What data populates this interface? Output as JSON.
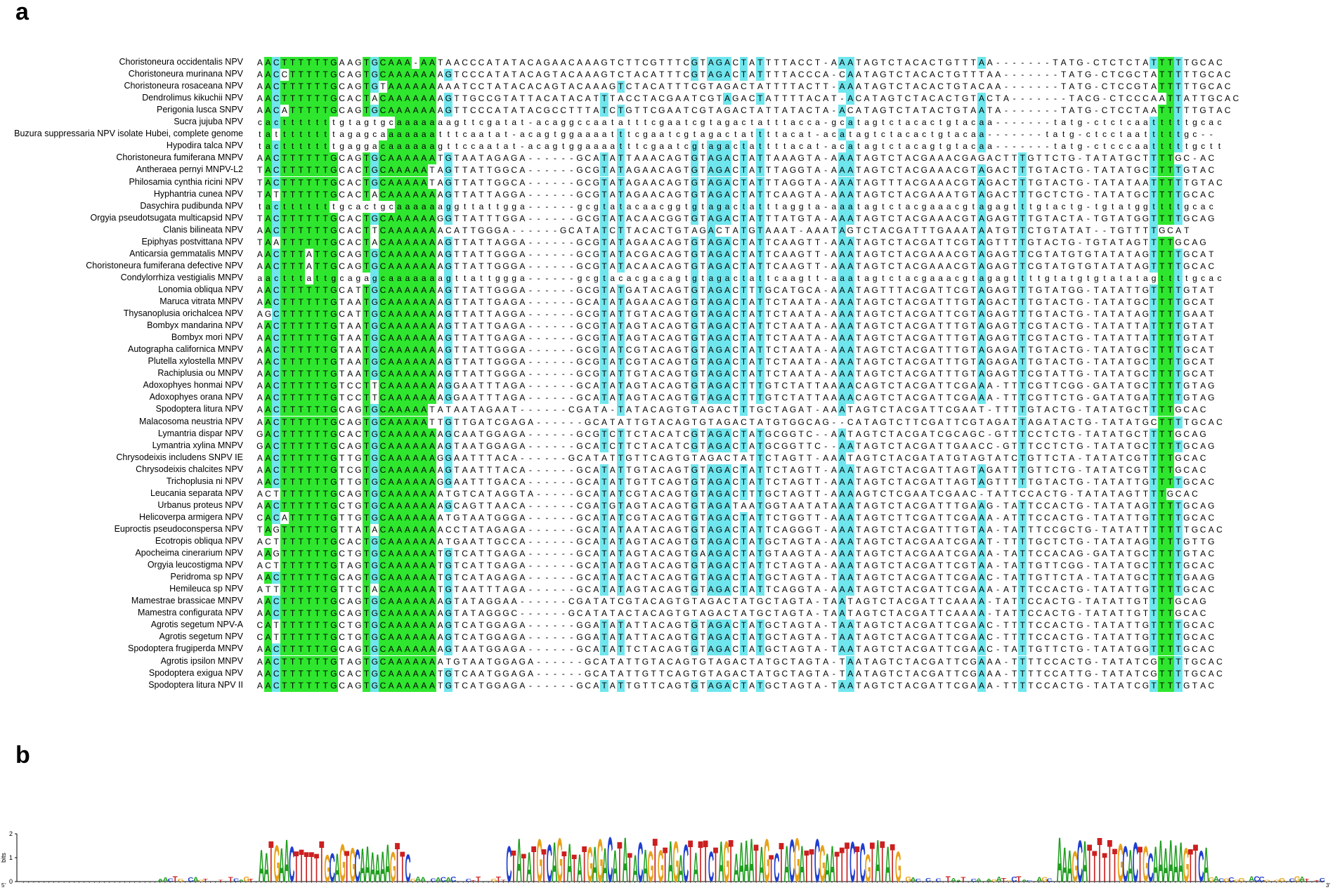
{
  "panels": {
    "a": "a",
    "b": "b"
  },
  "alignment": {
    "highlight_colors": {
      "conserved": "#2ee62e",
      "partial": "#6fe6ee"
    },
    "rows": [
      {
        "name": "Choristoneura occidentalis NPV",
        "seq": "AACTTTTTTGAAGTGCAAA-AATAACCCATATACAGAACAAAGTCTTCGTTTCGTAGACTATTTTACCT-AAATAGTCTACACTGTTTAA-------TATG-CTCTCTATTTTTGCAC"
      },
      {
        "name": "Choristoneura murinana NPV",
        "seq": "AACCTTTTTGCAGTGCAAAAAAAGTCCCATATACAGTACAAAGTCTACATTTCGTAGACTATTTTACCCA-CAATAGTCTACACTGTTTAA-------TATG-CTCGCTATTTTTGCAC"
      },
      {
        "name": "Choristoneura rosaceana NPV",
        "seq": "AACTTTTTTGCAGTGTAAAAAAAAATCCTATACACAGTACAAAGTCTACATTTCGTAGACTATTTTACTT-AAATAGTCTACACTGTACAA-------TATG-CTCCGTATTTTTGCAC"
      },
      {
        "name": "Dendrolimus kikuchii NPV",
        "seq": "AACTTTTTTGCACTACAAAAAAAGTTGCCGTATTACATACATTTACCTACGAATCGTAGACTATTTTACAT-ACATAGTCTACACTGTACTA-------TACG-CTCCCAATTATTGCAC"
      },
      {
        "name": "Perigonia lusca SNPV",
        "seq": "AACATTTTTGCAGTGCAAAAAAAGTTCCCATATACGCCTTTATCTGTTCGAATCGTAGACTATTATACTA-ACATAGTCTATACTGTAATA-------TATG-CTCCTAATTTTTGTAC"
      },
      {
        "name": "Sucra jujuba NPV",
        "seq": "cactttttttgtagtgcaaaaaaagttcgatat-acaggccaatatttcgaatcgtagactatttacca-gcatagtctacactgtacaa-------tatg-ctctcaatttttgcac"
      },
      {
        "name": "Buzura suppressaria NPV isolate Hubei, complete genome",
        "seq": "tattttttttagagcaaaaaaatttcaatat-acagtggaaaatttcgaatcgtagactattttacat-acatagtctacactgtacaa-------tatg-ctcctaatttttgc--"
      },
      {
        "name": "Hypodira talca NPV",
        "seq": "tactttttttgaggacaaaaaagttccaatat-acagtggaaaatttcgaatcgtagactattttacat-acatagtctacagtgtacaa-------tatg-ctcccaatttttgctt"
      },
      {
        "name": "Choristoneura fumiferana MNPV",
        "seq": "AACTTTTTTGCAGTGCAAAAAATGTAATAGAGA------GCATATTAAACAGTGTAGACTATTAAAGTA-AAATAGTCTACGAAACGAGACTTTGTTCTG-TATATGCTTTTGC-AC"
      },
      {
        "name": "Antheraea pernyi MNPV-L2",
        "seq": "TACTTTTTTGCACTGCAAAAATAGTTATTGGCA------GCGTATAGAACAGTGTAGACTATTTAGGTA-AAATAGTCTACGAAACGTAGACTTTGTACTG-TATATGCTTTTGTAC"
      },
      {
        "name": "Philosamia cynthia ricini NPV",
        "seq": "TACTTTTTTGCACTGCAAAAATAGTTATTGGCA------GCGTATAGAACAGTGTAGACTATTTAGGTA-AAATAGTTTACGAAACGTAGACTTTGTACTG-TATATAATTTTTGTAC"
      },
      {
        "name": "Hyphantria cunea NPV",
        "seq": "TATTTTTTTGCACTACAAAAAAAGTTATTAGGA------GCGTATAGAACAGTGTAGACTATTCAAGTA-AAATAGTCTACGAAATGTAGACTTTGCTCTG-TATATGCTTTTGCAC"
      },
      {
        "name": "Dasychira pudibunda NPV",
        "seq": "tactttttttgcactgcaaaaaaggttattgga------gcgtatacaacggtgtagactatttaggta-aaatagtctacgaaacgtagagtttgtactg-tgtatggttttgcac"
      },
      {
        "name": "Orgyia pseudotsugata multicapsid NPV",
        "seq": "TACTTTTTTGCACTGCAAAAAAGGTTATTTGGA------GCGTATACAACGGTGTAGACTATTTATGTA-AAATAGTCTACGAAACGTAGAGTTTGTACTA-TGTATGGTTTTGCAG"
      },
      {
        "name": "Clanis bilineata NPV",
        "seq": "AACTTTTTTGCACTTCAAAAAAACATTGGGA------GCATATCTTACACTGTAGACTATGTAAAT-AAATAGTCTACGATTTGAAATAATGTTCTGTATAT--TGTTTTGCAT"
      },
      {
        "name": "Epiphyas postvittana NPV",
        "seq": "TAATTTTTTGCACTACAAAAAAAGTTATTAGGA------GCGTATAGAACAGTGTAGACTATTCAAGTT-AAATAGTCTACGATTCGTAGTTTTGTACTG-TGTATAGTTTTGCAG"
      },
      {
        "name": "Anticarsia gemmatalis MNPV",
        "seq": "AACTTTATTGCAGTGCAAAAAAAGTTATTGGGA------GCGTATACGACAGTGTAGACTATTCAAGTT-AAATAGTCTACGAAACGTAGAGTTCGTATGTGTATATAGTTTTGCAT"
      },
      {
        "name": "Choristoneura fumiferana defective NPV",
        "seq": "AACTTTATTGCAGTGCAAAAAAAGTTATTGGGA------GCGTATACAACAGTGTAGACTATTCAAGTT-AAATAGTCTACGAAACGTAGAGTTCGTATGTGTATATAGTTTTGCAC"
      },
      {
        "name": "Condylorrhiza vestigialis MNPV",
        "seq": "aactttattgcagagcaaaaaaagttattggga------gcgtacacgacagtgtagactattcaagtt-aaatagtctacgaaacgtagagttttgtatgtgtatatagttttgcac"
      },
      {
        "name": "Lonomia obliqua NPV",
        "seq": "AACTTTTTTGCATTGCAAAAAAAGTTATTGGGA------GCGTATGATACAGTGTAGACTTTGCATGCA-AAATAGTTTACGATTCGTAGAGTTTGTATGG-TATATTGTTTTGTAT"
      },
      {
        "name": "Maruca vitrata MNPV",
        "seq": "AACTTTTTTGTAATGCAAAAAAAGTTATTGAGA------GCATATAGAACAGTGTAGACTATTCTAATA-AAATAGTCTACGATTTGTAGACTTTGTACTG-TATATGCTTTTGCAT"
      },
      {
        "name": "Thysanoplusia orichalcea NPV",
        "seq": "AGCTTTTTTGCATTGCAAAAAAAGTTATTAGGA------GCGTATTGTACAGTGTAGACTATTCTAATA-AAATAGTCTACGATTCGTAGAGTTTGTACTG-TATATAGTTTTGAAT"
      },
      {
        "name": "Bombyx mandarina NPV",
        "seq": "AACTTTTTTGTAATGCAAAAAAAGTTATTGAGA------GCGTATAGTACAGTGTAGACTATTCTAATA-AAATAGTCTACGATTTGTAGAGTTCGTACTG-TATATTATTTTGTAT"
      },
      {
        "name": "Bombyx mori NPV",
        "seq": "AACTTTTTTGTAATGCAAAAAAAGTTATTGAGA------GCGTATAGTACAGTGTAGACTATTCTAATA-AAATAGTCTACGATTTGTAGAGTTCGTACTG-TATATTATTTTGTAT"
      },
      {
        "name": "Autographa californica MNPV",
        "seq": "AACTTTTTTGTAATGCAAAAAAAGTTATTGGGA------GCGTATCGTACAGTGTAGACTATTCTAATA-AAATAGTCTACGATTTGTAGAGATTGTACTG-TATATGCTTTTGCAT"
      },
      {
        "name": "Plutella xylostella MNPV",
        "seq": "AACTTTTTTGTAATGCAAAAAAAGTTATTGGGA------GCGTATCGTACAGTGTAGACTATTCTAATA-AAATAGTCTACGATTTGTAGAGATTGTACTG-TATATGCTTTTGCAT"
      },
      {
        "name": "Rachiplusia ou MNPV",
        "seq": "AACTTTTTTGTAATGCAAAAAAAGTTATTGGGA------GCGTATTGTACAGTGTAGACTATTCTAATA-AAATAGTCTACGATTTGTAGAGTTCGTATTG-TATATGCTTTTGCAT"
      },
      {
        "name": "Adoxophyes honmai NPV",
        "seq": "AACTTTTTTGTCCTTCAAAAAAAGGAATTTAGA------GCATATAGTACAGTGTAGACTTTGTCTATTAAAACAGTCTACGATTCGAAA-TTTCGTTCGG-GATATGCTTTTGTAG"
      },
      {
        "name": "Adoxophyes orana NPV",
        "seq": "AACTTTTTTGTCCTTCAAAAAAAGGAATTTAGA------GCATATAGTACAGTGTAGACTTTGTCTATTAAAACAGTCTACGATTCGAAA-TTTCGTTCTG-GATATGATTTTGTAG"
      },
      {
        "name": "Spodoptera litura NPV",
        "seq": "AACTTTTTTGCAGTGCAAAAATATAATAGAAT------CGATA-TATACAGTGTAGACTTTGCTAGAT-AAATAGTCTACGATTCGAAT-TTTTGTACTG-TATATGCTTTTGCAC"
      },
      {
        "name": "Malacosoma neustria NPV",
        "seq": "AACTTTTTTGCAGTGCAAAAATTGTTGATCGAGA------GCATATTGTACAGTGTAGACTATGTGGCAG--CATAGTCTTCGATTCGTAGATTAGATACTG-TATATGCTTTTGCAC"
      },
      {
        "name": "Lymantria dispar NPV",
        "seq": "GACTTTTTTGCACTGCAAAAAAAGCAATGGAGA------GCGTCTTCTACATCGTAGACTATGCGGTC--AATAGTCTACGATCGCAGC-GTTTCCTCTG-TATATGCTTTTGCAG"
      },
      {
        "name": "Lymantria xylina MNPV",
        "seq": "GACTTTTTTGCAGTGCAAAAAAAGTAATGGAGA------GCATCTTCTACATCGTAGACTATGCGGTTC--AATAGTCTACGATTGAACC-GTTTCCTCTG-TATATGCTTTTGCAG"
      },
      {
        "name": "Chrysodeixis includens SNPV IE",
        "seq": "AACTTTTTTGTTGTGCAAAAAAGGAATTTACA------GCATATTGTTCAGTGTAGACTATTCTAGTT-AAATAGTCTACGATATGTAGTATCTGTTCTA-TATATCGTTTTGCAC"
      },
      {
        "name": "Chrysodeixis chalcites NPV",
        "seq": "AACTTTTTTGTCGTGCAAAAAAAGTAATTTACA------GCATATTGTACAGTGTAGACTATTCTAGTT-AAATAGTCTACGATTAGTAGATTTGTTCTG-TATATCGTTTTGCAC"
      },
      {
        "name": "Trichoplusia ni NPV",
        "seq": "AACTTTTTTGTTGTGCAAAAAAGGAATTTGACA------GCATATTGTTCAGTGTAGACTATTCTAGTT-AAATAGTCTACGATTAGTAGTTTTTGTACTG-TATATTGTTTTGCAC"
      },
      {
        "name": "Leucania separata NPV",
        "seq": "ACTTTTTTTGCAGTGCAAAAAAATGTCATAGGTA-----GCATATCGTACAGTGTAGACTTTGCTAGTT-AAAAGTCTCGAATCGAAC-TATTCCACTG-TATATAGTTTTGCAC"
      },
      {
        "name": "Urbanus proteus NPV",
        "seq": "AACTTTTTTGCTGTGCAAAAAAAGCAGTTAACA------CGATGTAGTACAGTGTAGATAATGGTAATATAAATAGTCTACGATTTGAAG-TATTCCACTG-TATATAGTTTTGCAG"
      },
      {
        "name": "Helicoverpa armigera NPV",
        "seq": "CACATTTTTGTTGTGCAAAAAAATGTAATGGGA------GCATATCGTACAGTGTAGACTATTCTGGTT-AAATAGTCTTCGATTCGAAA-ATTTCCACTG-TATATTGTTTTGCAC"
      },
      {
        "name": "Euproctis pseudoconspersa NPV",
        "seq": "TAGTTTTTTGTTATACAAAAAAACCTATAGAGA------GCATATAATACAGTGTAGACTATTCAGGGT-AAATAGTCTACGATTTGTAA-TATTTCCGCTG-TATATTTTTTTGCAC"
      },
      {
        "name": "Ecotropis obliqua NPV",
        "seq": "ACTTTTTTTGCACTGCAAAAAAATGAATTGCCA------GCATATAGTACAGTGTAGACTATGCTAGTA-AAATAGTCTACGAATCGAAT-TTTTGCTCTG-TATATAGTTTTGTTG"
      },
      {
        "name": "Apocheima cinerarium NPV",
        "seq": "AAGTTTTTTGCTGTGCAAAAAATGTCATTGAGA------GCATATAGTACAGTGAAGACTATGTAAGTA-AAATAGTCTACGAATCGAAA-TATTCCACAG-GATATGCTTTTGTAC"
      },
      {
        "name": "Orgyia leucostigma NPV",
        "seq": "ACTTTTTTTGTAGTGCAAAAAATGTCATTGAGA------GCATATAGTACAGTGTAGACTATTCTAGTA-AAATAGTCTACGATTCGTAA-TATTGTTCGG-TATATGCTTTTGCAC"
      },
      {
        "name": "Peridroma sp NPV",
        "seq": "AACTTTTTTGCAGTGCAAAAAATGTCATAGAGA------GCATATACTACAGTGTAGACTATGCTAGTA-TAATAGTCTACGATTCGAAC-TATTGTTCTA-TATATGCTTTTGAAG"
      },
      {
        "name": "Hemileuca sp NPV",
        "seq": "ATTTTTTTTGTTCTACAAAAAATGTAATTTAGA------GCATATAGTACAGTGTAGACTATTCAGGTA-AAATAGTCTACGATTCGAAA-ATTTCCACTG-TATATTGTTTTGCAC"
      },
      {
        "name": "Mamestrae brassicae MNPV",
        "seq": "AACTTTTTTGCAGTGCAAAAAAAGTATAGGAA------CGATATCGTACAGTGTAGACTATGCTAGTA-TAATAGTCTACGATTCAAAA-TATTCCACTG-TATATTGTTTTGCAG"
      },
      {
        "name": "Mamestra configurata NPV",
        "seq": "AACTTTTTTGCAGTGCAAAAAAAGTATAGGGC------GCATATACTACAGTGTAGACTATGCTAGTA-TAATAGTCTACGATTCAAAA-TATTCCACTG-TATATTGTTTTGCAC"
      },
      {
        "name": "Agrotis segetum NPV-A",
        "seq": "CATTTTTTTGCTGTGCAAAAAAAGTCATGGAGA------GGATATATTACAGTGTAGACTATGCTAGTA-TAATAGTCTACGATTCGAAC-TTTTCCACTG-TATATTGTTTTGCAC"
      },
      {
        "name": "Agrotis segetum NPV",
        "seq": "CATTTTTTTGCTGTGCAAAAAAAGTCATGGAGA------GGATATATTACAGTGTAGACTATGCTAGTA-TAATAGTCTACGATTCGAAC-TTTTCCACTG-TATATTGTTTTGCAC"
      },
      {
        "name": "Spodoptera frugiperda MNPV",
        "seq": "AACTTTTTTGCAGTGCAAAAAAAGTAATGGAGA------GCATATTCTACAGTGTAGACTATGCTAGTA-TAATAGTCTACGATTCGAAC-TATTGTTCTG-TATATGGTTTTGCAC"
      },
      {
        "name": "Agrotis ipsilon MNPV",
        "seq": "AACTTTTTTGTAGTGCAAAAAAATGTAATGGAGA------GCATATTGTACAGTGTAGACTATGCTAGTA-TAATAGTCTACGATTCGAAA-TTTTCCACTG-TATATCGTTTTGCAC"
      },
      {
        "name": "Spodoptera exigua NPV",
        "seq": "AACTTTTTTGCACTGCAAAAAATGTCAATGGAGA------GCATATTGTTCAGTGTAGACTATGCTAGTA-TAATAGTCTACGATTCGAAA-TTTTCCATTG-TATATCGTTTTGCAC"
      },
      {
        "name": "Spodoptera litura NPV II",
        "seq": "AACTTTTTTGCAGTGCAAAAAATGTCATGGAGA------GCATATTGTTCAGTGTAGACTATGCTAGTA-TAATAGTCTACGATTCGAAA-TTTTCCACTG-TATATCGTTTTGTAC"
      }
    ]
  },
  "logo": {
    "y_axis_label": "bits",
    "y_ticks": [
      "0",
      "1",
      "2"
    ],
    "x_first_label": "5'",
    "x_last_label": "3'",
    "colors": {
      "A": "#1f9e1f",
      "C": "#1f3fcf",
      "G": "#e8a21a",
      "T": "#cc1f1f"
    },
    "conserved_stretches": [
      "AATGAACTTTTTTGCAGTGCAAAAAAGTTC",
      "CTATATGTCAGTATAT",
      "GAGACATATACAGTGTAGACTATTCTAGTAAAATAGTCTACGATTCGAATTTCTCGTATATG",
      "AAAGCATTTTTTGCACTGCAAAAAAGTTCA"
    ]
  }
}
